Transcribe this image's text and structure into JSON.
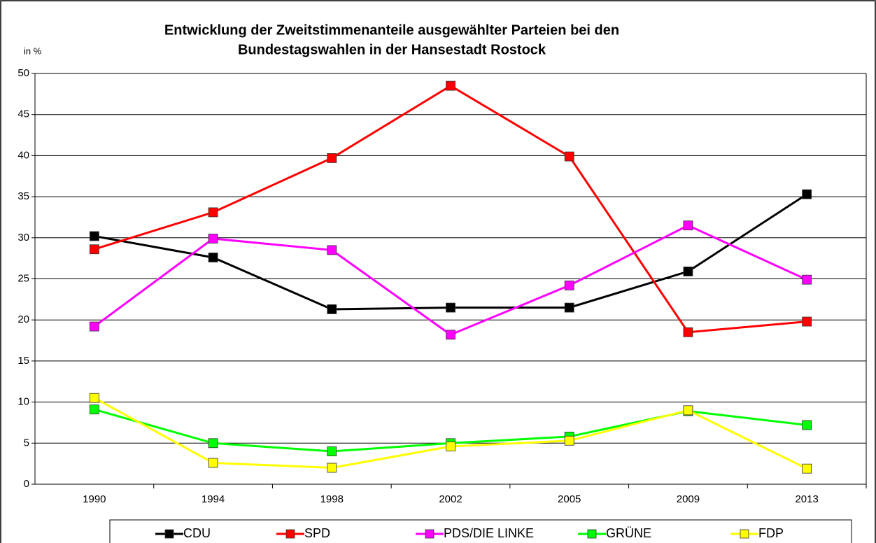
{
  "chart_data": {
    "type": "line",
    "title": [
      "Entwicklung der Zweitstimmenanteile ausgewählter Parteien bei den",
      "Bundestagswahlen in der Hansestadt Rostock"
    ],
    "y_label": "in %",
    "categories": [
      "1990",
      "1994",
      "1998",
      "2002",
      "2005",
      "2009",
      "2013"
    ],
    "series": [
      {
        "name": "CDU",
        "color": "#000000",
        "values": [
          30.2,
          27.6,
          21.3,
          21.5,
          21.5,
          25.9,
          35.3
        ]
      },
      {
        "name": "SPD",
        "color": "#ff0000",
        "values": [
          28.6,
          33.1,
          39.7,
          48.5,
          39.9,
          18.5,
          19.8
        ]
      },
      {
        "name": "PDS/DIE LINKE",
        "color": "#ff00ff",
        "values": [
          19.2,
          29.9,
          28.5,
          18.2,
          24.2,
          31.5,
          24.9
        ]
      },
      {
        "name": "GRÜNE",
        "color": "#00ff00",
        "values": [
          9.1,
          5.0,
          4.0,
          5.0,
          5.8,
          8.9,
          7.2
        ]
      },
      {
        "name": "FDP",
        "color": "#ffff00",
        "values": [
          10.5,
          2.6,
          2.0,
          4.6,
          5.3,
          9.0,
          1.9
        ]
      }
    ],
    "ylim": [
      0,
      50
    ],
    "yticks": [
      0,
      5,
      10,
      15,
      20,
      25,
      30,
      35,
      40,
      45,
      50
    ],
    "grid": true,
    "legend": "bottom"
  }
}
